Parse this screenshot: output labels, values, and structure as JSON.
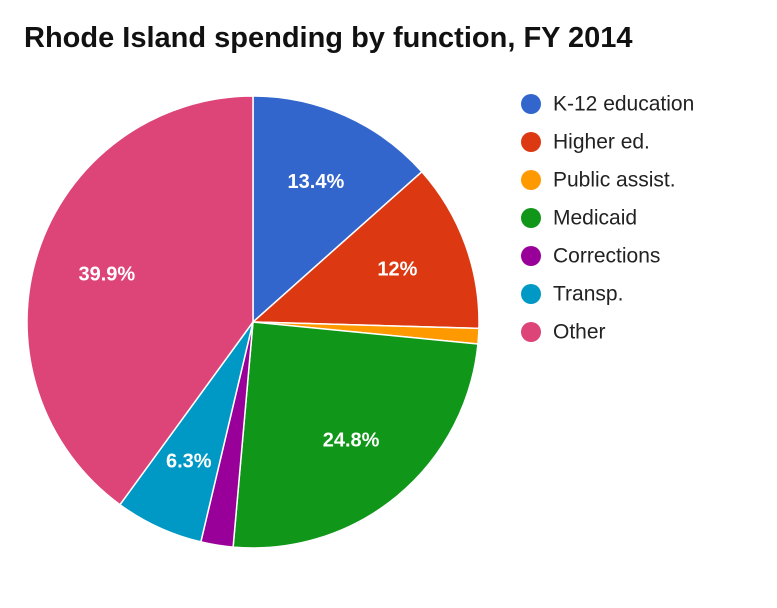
{
  "chart_data": {
    "type": "pie",
    "title": "Rhode Island spending by function, FY 2014",
    "categories": [
      "K-12 education",
      "Higher ed.",
      "Public assist.",
      "Medicaid",
      "Corrections",
      "Transp.",
      "Other"
    ],
    "values": [
      13.4,
      12,
      1.1,
      24.8,
      2.3,
      6.3,
      39.9
    ],
    "data_labels": [
      "13.4%",
      "12%",
      "",
      "24.8%",
      "",
      "6.3%",
      "39.9%"
    ],
    "colors": [
      "#3366cc",
      "#dc3912",
      "#ff9900",
      "#109618",
      "#990099",
      "#0099c6",
      "#dd4477"
    ],
    "legend": {
      "position": "right",
      "entries": [
        "K-12 education",
        "Higher ed.",
        "Public assist.",
        "Medicaid",
        "Corrections",
        "Transp.",
        "Other"
      ]
    },
    "start_angle": "12 o'clock",
    "direction": "clockwise"
  }
}
